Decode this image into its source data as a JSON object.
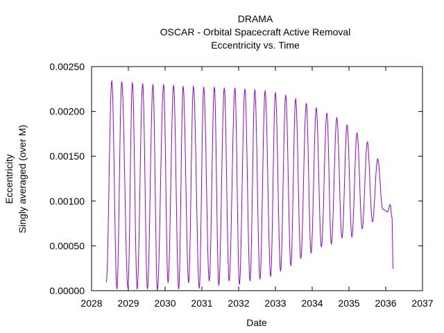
{
  "chart_data": {
    "type": "line",
    "title_lines": [
      "DRAMA",
      "OSCAR - Orbital Spacecraft Active Removal",
      "Eccentricity vs. Time"
    ],
    "xlabel": "Date",
    "ylabel_lines": [
      "Eccentricity",
      "Singly averaged (over M)"
    ],
    "xlim": [
      2028,
      2037
    ],
    "ylim": [
      0,
      0.0025
    ],
    "x_ticks": [
      "2028",
      "2029",
      "2030",
      "2031",
      "2032",
      "2033",
      "2034",
      "2035",
      "2036",
      "2037"
    ],
    "y_ticks": [
      "0.00000",
      "0.00050",
      "0.00100",
      "0.00150",
      "0.00200",
      "0.00250"
    ],
    "grid": false,
    "legend": "none",
    "series": [
      {
        "color": "#9400d3",
        "x": [
          2028.4,
          2028.55,
          2028.69,
          2028.82,
          2028.99,
          2029.11,
          2029.24,
          2029.39,
          2029.52,
          2029.67,
          2029.79,
          2029.96,
          2030.08,
          2030.23,
          2030.37,
          2030.49,
          2030.64,
          2030.77,
          2030.93,
          2031.05,
          2031.2,
          2031.34,
          2031.46,
          2031.61,
          2031.74,
          2031.9,
          2032.02,
          2032.17,
          2032.31,
          2032.44,
          2032.58,
          2032.72,
          2032.87,
          2033.0,
          2033.14,
          2033.28,
          2033.42,
          2033.55,
          2033.69,
          2033.84,
          2033.97,
          2034.11,
          2034.25,
          2034.4,
          2034.52,
          2034.67,
          2034.81,
          2034.95,
          2035.08,
          2035.22,
          2035.36,
          2035.5,
          2035.64,
          2035.78,
          2035.92,
          2036.05,
          2036.12,
          2036.17,
          2036.2
        ],
        "y": [
          0.0001,
          0.00234,
          2e-05,
          0.00233,
          3e-05,
          0.00232,
          2e-05,
          0.00231,
          2e-05,
          0.0023,
          1e-05,
          0.0023,
          9e-05,
          0.00229,
          2e-05,
          0.00228,
          9e-05,
          0.00228,
          3e-05,
          0.00227,
          0.00011,
          0.00227,
          6e-05,
          0.00226,
          0.00011,
          0.00226,
          7e-05,
          0.00225,
          0.00011,
          0.00224,
          0.00013,
          0.00223,
          0.00016,
          0.00221,
          0.00022,
          0.00218,
          0.00028,
          0.00214,
          0.00036,
          0.00209,
          0.00042,
          0.00204,
          0.00049,
          0.00198,
          0.00052,
          0.00193,
          0.00059,
          0.00185,
          0.0006,
          0.00176,
          0.00069,
          0.00166,
          0.00077,
          0.00147,
          0.00091,
          0.00088,
          0.00096,
          0.00082,
          0.00025
        ]
      }
    ]
  }
}
